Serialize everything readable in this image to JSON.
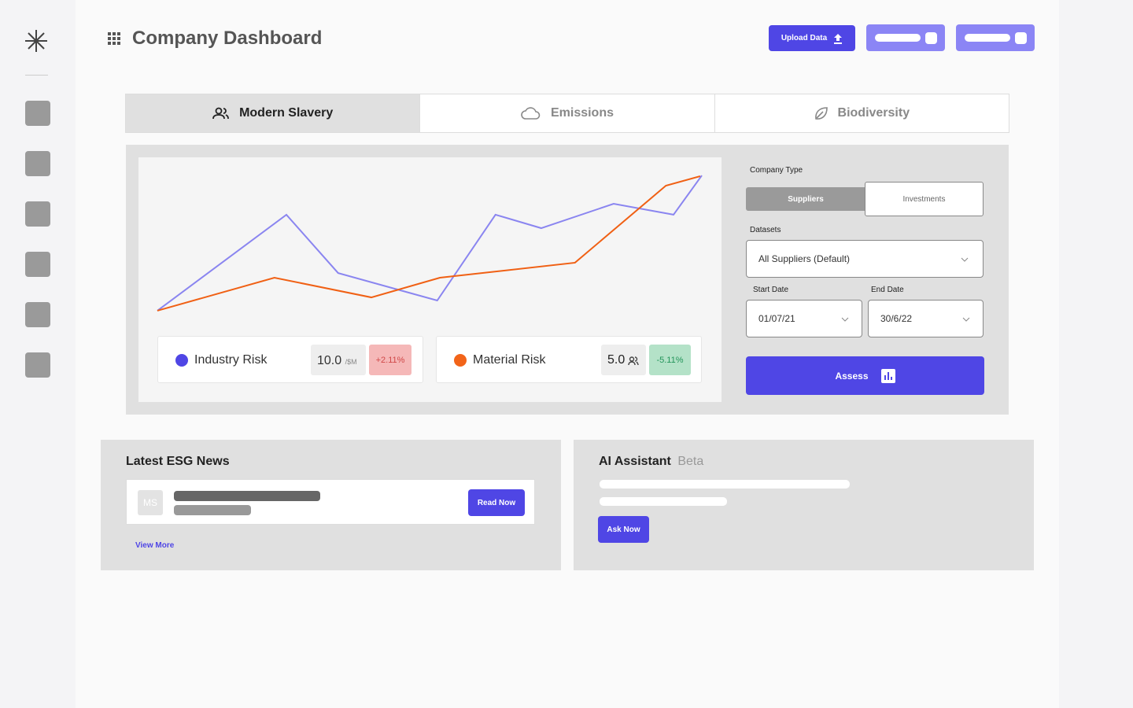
{
  "header": {
    "title": "Company Dashboard",
    "upload_button": "Upload Data"
  },
  "tabs": [
    "Modern Slavery",
    "Emissions",
    "Biodiversity"
  ],
  "chart": {
    "type": "line",
    "xlim": [
      0,
      100
    ],
    "ylim": [
      0,
      100
    ],
    "series": [
      {
        "name": "Industry Risk",
        "color": "#8a85f0",
        "legend_color": "#4f46e5",
        "x": [
          0,
          23.7,
          33.2,
          51.4,
          62.1,
          70.5,
          83.8,
          94.8,
          100
        ],
        "values": [
          2.8,
          70.6,
          29.4,
          10,
          70.6,
          61.1,
          78.3,
          70.6,
          98.3
        ],
        "figure": "10.0",
        "unit": "/$M",
        "change": "+2.11%"
      },
      {
        "name": "Material Risk",
        "color": "#f06014",
        "legend_color": "#f26419",
        "x": [
          0,
          21.5,
          39.3,
          51.9,
          76.7,
          93.4,
          99.7
        ],
        "values": [
          2.8,
          26.1,
          12.2,
          26.1,
          36.7,
          91.1,
          97.8
        ],
        "figure": "5.0",
        "change": "-5.11%"
      }
    ]
  },
  "form": {
    "company_type_label": "Company Type",
    "company_types": [
      "Suppliers",
      "Investments"
    ],
    "datasets_label": "Datasets",
    "dataset": "All Suppliers (Default)",
    "start_label": "Start Date",
    "start": "01/07/21",
    "end_label": "End Date",
    "end": "30/6/22",
    "assess": "Assess"
  },
  "news": {
    "title": "Latest ESG News",
    "avatar": "MS",
    "read": "Read Now",
    "more": "View More"
  },
  "assistant": {
    "title": "AI Assistant",
    "badge": "Beta",
    "ask": "Ask Now"
  }
}
